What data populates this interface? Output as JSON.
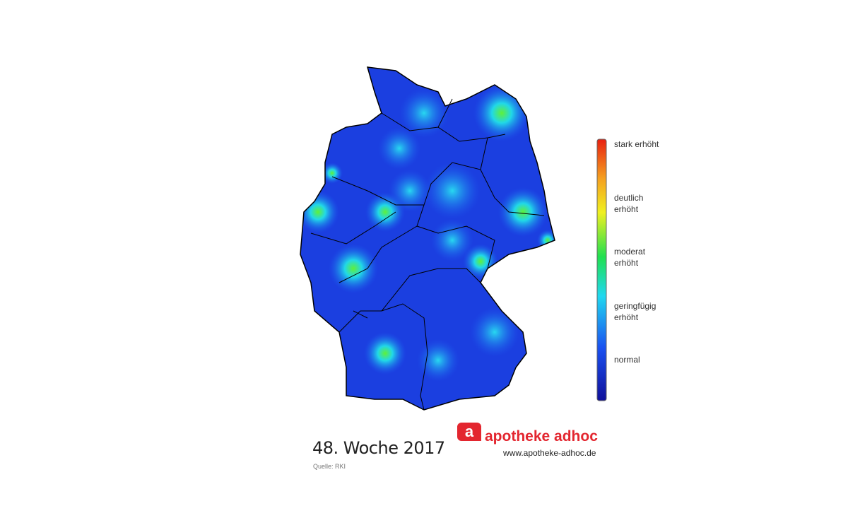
{
  "map": {
    "legend": [
      "stark erhöht",
      "deutlich erhöht",
      "moderat erhöht",
      "geringfügig erhöht",
      "normal"
    ]
  },
  "caption": {
    "title": "48. Woche 2017",
    "source": "Quelle: RKI"
  },
  "logo": {
    "icon": "a",
    "name": "apotheke adhoc",
    "url": "www.apotheke-adhoc.de"
  }
}
